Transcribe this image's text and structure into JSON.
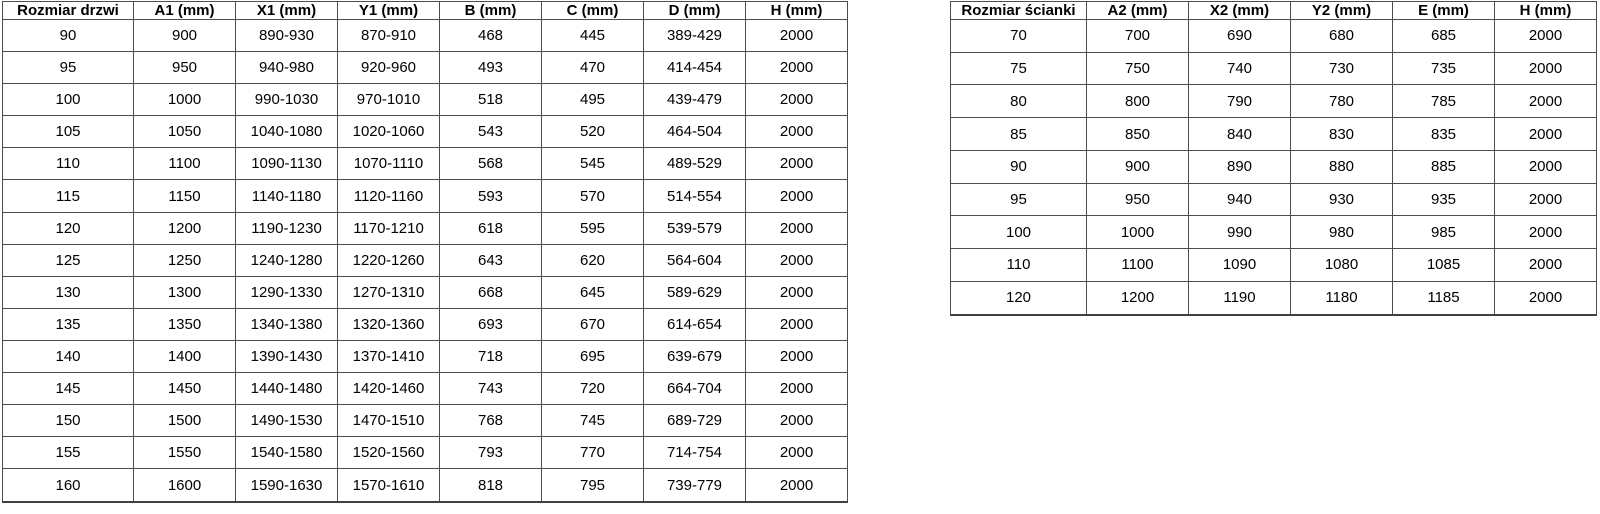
{
  "door_table": {
    "headers": [
      "Rozmiar drzwi",
      "A1 (mm)",
      "X1 (mm)",
      "Y1 (mm)",
      "B (mm)",
      "C (mm)",
      "D (mm)",
      "H (mm)"
    ],
    "rows": [
      [
        "90",
        "900",
        "890-930",
        "870-910",
        "468",
        "445",
        "389-429",
        "2000"
      ],
      [
        "95",
        "950",
        "940-980",
        "920-960",
        "493",
        "470",
        "414-454",
        "2000"
      ],
      [
        "100",
        "1000",
        "990-1030",
        "970-1010",
        "518",
        "495",
        "439-479",
        "2000"
      ],
      [
        "105",
        "1050",
        "1040-1080",
        "1020-1060",
        "543",
        "520",
        "464-504",
        "2000"
      ],
      [
        "110",
        "1100",
        "1090-1130",
        "1070-1110",
        "568",
        "545",
        "489-529",
        "2000"
      ],
      [
        "115",
        "1150",
        "1140-1180",
        "1120-1160",
        "593",
        "570",
        "514-554",
        "2000"
      ],
      [
        "120",
        "1200",
        "1190-1230",
        "1170-1210",
        "618",
        "595",
        "539-579",
        "2000"
      ],
      [
        "125",
        "1250",
        "1240-1280",
        "1220-1260",
        "643",
        "620",
        "564-604",
        "2000"
      ],
      [
        "130",
        "1300",
        "1290-1330",
        "1270-1310",
        "668",
        "645",
        "589-629",
        "2000"
      ],
      [
        "135",
        "1350",
        "1340-1380",
        "1320-1360",
        "693",
        "670",
        "614-654",
        "2000"
      ],
      [
        "140",
        "1400",
        "1390-1430",
        "1370-1410",
        "718",
        "695",
        "639-679",
        "2000"
      ],
      [
        "145",
        "1450",
        "1440-1480",
        "1420-1460",
        "743",
        "720",
        "664-704",
        "2000"
      ],
      [
        "150",
        "1500",
        "1490-1530",
        "1470-1510",
        "768",
        "745",
        "689-729",
        "2000"
      ],
      [
        "155",
        "1550",
        "1540-1580",
        "1520-1560",
        "793",
        "770",
        "714-754",
        "2000"
      ],
      [
        "160",
        "1600",
        "1590-1630",
        "1570-1610",
        "818",
        "795",
        "739-779",
        "2000"
      ]
    ]
  },
  "wall_table": {
    "headers": [
      "Rozmiar ścianki",
      "A2 (mm)",
      "X2 (mm)",
      "Y2 (mm)",
      "E (mm)",
      "H (mm)"
    ],
    "rows": [
      [
        "70",
        "700",
        "690",
        "680",
        "685",
        "2000"
      ],
      [
        "75",
        "750",
        "740",
        "730",
        "735",
        "2000"
      ],
      [
        "80",
        "800",
        "790",
        "780",
        "785",
        "2000"
      ],
      [
        "85",
        "850",
        "840",
        "830",
        "835",
        "2000"
      ],
      [
        "90",
        "900",
        "890",
        "880",
        "885",
        "2000"
      ],
      [
        "95",
        "950",
        "940",
        "930",
        "935",
        "2000"
      ],
      [
        "100",
        "1000",
        "990",
        "980",
        "985",
        "2000"
      ],
      [
        "110",
        "1100",
        "1090",
        "1080",
        "1085",
        "2000"
      ],
      [
        "120",
        "1200",
        "1190",
        "1180",
        "1185",
        "2000"
      ]
    ]
  },
  "colors": {
    "border": "#404040",
    "text": "#000000",
    "background": "#ffffff"
  }
}
